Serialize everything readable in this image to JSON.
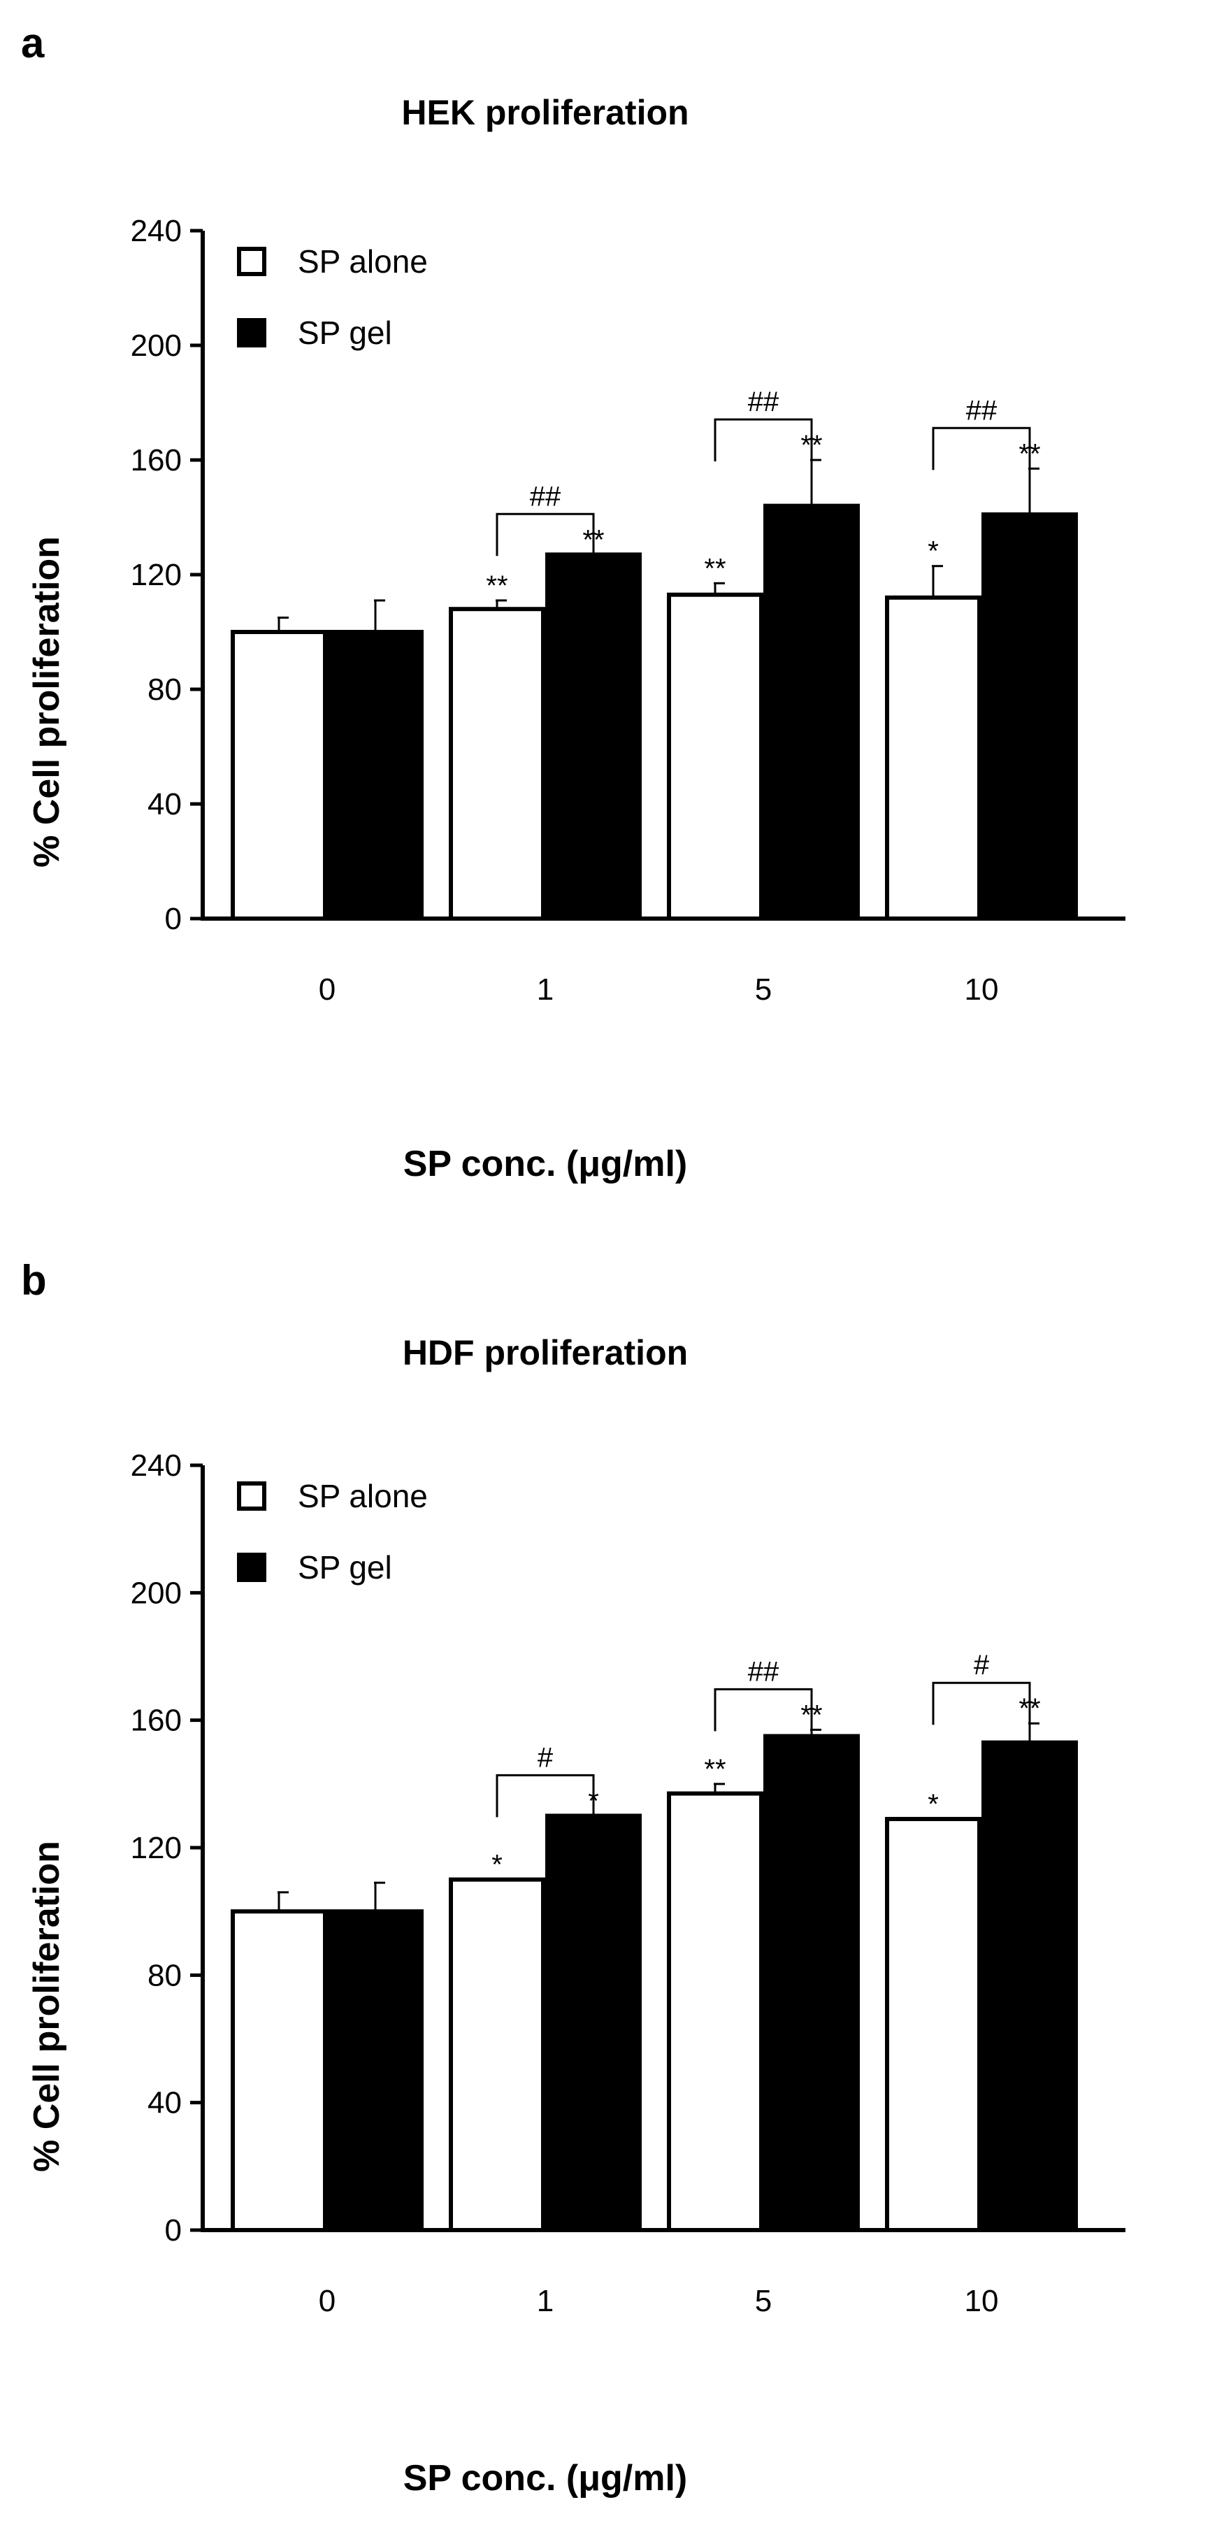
{
  "chart_data": [
    {
      "type": "bar",
      "panel": "a",
      "title": "HEK proliferation",
      "xlabel": "SP conc. (μg/ml)",
      "ylabel": "% Cell proliferation",
      "ylim": [
        0,
        240
      ],
      "yticks": [
        0,
        40,
        80,
        120,
        160,
        200,
        240
      ],
      "grid": false,
      "legend_position": "top-left",
      "categories": [
        "0",
        "1",
        "5",
        "10"
      ],
      "series": [
        {
          "name": "SP alone",
          "color": "#ffffff",
          "values": [
            100,
            108,
            113,
            112
          ],
          "errors": [
            5,
            3,
            4,
            11
          ],
          "sig": [
            "",
            "**",
            "**",
            "*"
          ]
        },
        {
          "name": "SP gel",
          "color": "#000000",
          "values": [
            100,
            127,
            144,
            141
          ],
          "errors": [
            11,
            0,
            16,
            16
          ],
          "sig": [
            "",
            "**",
            "**",
            "**"
          ]
        }
      ],
      "comparisons": [
        "",
        "##",
        "##",
        "##"
      ]
    },
    {
      "type": "bar",
      "panel": "b",
      "title": "HDF proliferation",
      "xlabel": "SP conc. (μg/ml)",
      "ylabel": "% Cell proliferation",
      "ylim": [
        0,
        240
      ],
      "yticks": [
        0,
        40,
        80,
        120,
        160,
        200,
        240
      ],
      "grid": false,
      "legend_position": "top-left",
      "categories": [
        "0",
        "1",
        "5",
        "10"
      ],
      "series": [
        {
          "name": "SP alone",
          "color": "#ffffff",
          "values": [
            100,
            110,
            137,
            129
          ],
          "errors": [
            6,
            0,
            3,
            0
          ],
          "sig": [
            "",
            "*",
            "**",
            "*"
          ]
        },
        {
          "name": "SP gel",
          "color": "#000000",
          "values": [
            100,
            130,
            155,
            153
          ],
          "errors": [
            9,
            0,
            2,
            6
          ],
          "sig": [
            "",
            "*",
            "**",
            "**"
          ]
        }
      ],
      "comparisons": [
        "",
        "#",
        "##",
        "#"
      ]
    }
  ]
}
